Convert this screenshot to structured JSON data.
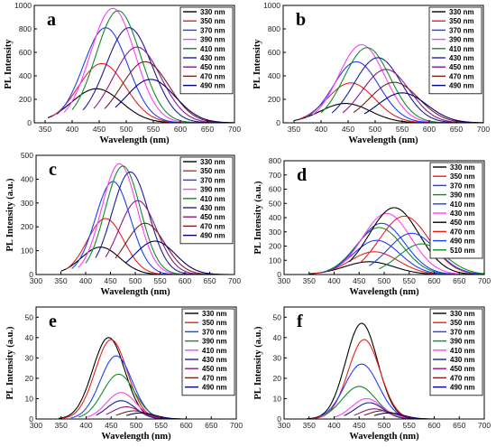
{
  "chart_data": [
    {
      "panel": "a",
      "type": "line",
      "xlabel": "Wavelength (nm)",
      "ylabel": "PL Intensity",
      "xlim": [
        330,
        700
      ],
      "ylim": [
        0,
        1000
      ],
      "xticks": [
        350,
        400,
        450,
        500,
        550,
        600,
        650,
        700
      ],
      "yticks": [
        0,
        200,
        400,
        600,
        800,
        1000
      ],
      "grid": false,
      "legend": "top-right",
      "series": [
        {
          "name": "330 nm",
          "color": "#000000",
          "peak_x": 445,
          "peak_y": 290,
          "width": 65,
          "start": 355
        },
        {
          "name": "350 nm",
          "color": "#e8211d",
          "peak_x": 455,
          "peak_y": 505,
          "width": 62,
          "start": 360
        },
        {
          "name": "370 nm",
          "color": "#1f3ff2",
          "peak_x": 462,
          "peak_y": 810,
          "width": 58,
          "start": 372
        },
        {
          "name": "390 nm",
          "color": "#ff3ff7",
          "peak_x": 475,
          "peak_y": 975,
          "width": 58,
          "start": 385
        },
        {
          "name": "410 nm",
          "color": "#148a2a",
          "peak_x": 485,
          "peak_y": 955,
          "width": 58,
          "start": 400
        },
        {
          "name": "430 nm",
          "color": "#1e1e96",
          "peak_x": 505,
          "peak_y": 810,
          "width": 60,
          "start": 420
        },
        {
          "name": "450 nm",
          "color": "#8a1a8a",
          "peak_x": 520,
          "peak_y": 645,
          "width": 62,
          "start": 440
        },
        {
          "name": "470 nm",
          "color": "#7a2020",
          "peak_x": 535,
          "peak_y": 520,
          "width": 62,
          "start": 460
        },
        {
          "name": "490 nm",
          "color": "#000080",
          "peak_x": 545,
          "peak_y": 370,
          "width": 64,
          "start": 480
        }
      ]
    },
    {
      "panel": "b",
      "type": "line",
      "xlabel": "Wavelength (nm)",
      "ylabel": "PL Intensity",
      "xlim": [
        330,
        700
      ],
      "ylim": [
        0,
        1000
      ],
      "xticks": [
        350,
        400,
        450,
        500,
        550,
        600,
        650,
        700
      ],
      "yticks": [
        0,
        200,
        400,
        600,
        800,
        1000
      ],
      "grid": false,
      "legend": "top-right",
      "series": [
        {
          "name": "330 nm",
          "color": "#000000",
          "peak_x": 445,
          "peak_y": 165,
          "width": 65,
          "start": 350
        },
        {
          "name": "350 nm",
          "color": "#e8211d",
          "peak_x": 455,
          "peak_y": 340,
          "width": 62,
          "start": 360
        },
        {
          "name": "370 nm",
          "color": "#1f3ff2",
          "peak_x": 465,
          "peak_y": 520,
          "width": 60,
          "start": 372
        },
        {
          "name": "390 nm",
          "color": "#ff3ff7",
          "peak_x": 475,
          "peak_y": 665,
          "width": 60,
          "start": 385
        },
        {
          "name": "410 nm",
          "color": "#148a2a",
          "peak_x": 485,
          "peak_y": 640,
          "width": 60,
          "start": 400
        },
        {
          "name": "430 nm",
          "color": "#1e1e96",
          "peak_x": 505,
          "peak_y": 555,
          "width": 62,
          "start": 420
        },
        {
          "name": "450 nm",
          "color": "#8a1a8a",
          "peak_x": 520,
          "peak_y": 455,
          "width": 62,
          "start": 440
        },
        {
          "name": "470 nm",
          "color": "#7a2020",
          "peak_x": 535,
          "peak_y": 345,
          "width": 64,
          "start": 460
        },
        {
          "name": "490 nm",
          "color": "#000080",
          "peak_x": 550,
          "peak_y": 255,
          "width": 64,
          "start": 480
        }
      ]
    },
    {
      "panel": "c",
      "type": "line",
      "xlabel": "Wavelength (nm)",
      "ylabel": "PL Intensity (a.u.)",
      "xlim": [
        300,
        700
      ],
      "ylim": [
        0,
        500
      ],
      "xticks": [
        300,
        350,
        400,
        450,
        500,
        550,
        600,
        650,
        700
      ],
      "yticks": [
        0,
        100,
        200,
        300,
        400,
        500
      ],
      "grid": false,
      "legend": "top-right",
      "series": [
        {
          "name": "330 nm",
          "color": "#000000",
          "peak_x": 430,
          "peak_y": 115,
          "width": 55,
          "start": 350
        },
        {
          "name": "350 nm",
          "color": "#e8211d",
          "peak_x": 440,
          "peak_y": 235,
          "width": 52,
          "start": 360
        },
        {
          "name": "370 nm",
          "color": "#1f3ff2",
          "peak_x": 455,
          "peak_y": 390,
          "width": 50,
          "start": 372
        },
        {
          "name": "390 nm",
          "color": "#ff3ff7",
          "peak_x": 468,
          "peak_y": 465,
          "width": 50,
          "start": 385
        },
        {
          "name": "410 nm",
          "color": "#148a2a",
          "peak_x": 475,
          "peak_y": 455,
          "width": 50,
          "start": 400
        },
        {
          "name": "430 nm",
          "color": "#1e1e96",
          "peak_x": 490,
          "peak_y": 430,
          "width": 52,
          "start": 420
        },
        {
          "name": "450 nm",
          "color": "#8a1a8a",
          "peak_x": 505,
          "peak_y": 310,
          "width": 54,
          "start": 440
        },
        {
          "name": "470 nm",
          "color": "#7a2020",
          "peak_x": 520,
          "peak_y": 215,
          "width": 56,
          "start": 460
        },
        {
          "name": "490 nm",
          "color": "#000080",
          "peak_x": 540,
          "peak_y": 140,
          "width": 58,
          "start": 480
        }
      ]
    },
    {
      "panel": "d",
      "type": "line",
      "xlabel": "Wavelength (nm)",
      "ylabel": "PL Intensity (a.u.)",
      "xlim": [
        300,
        700
      ],
      "ylim": [
        0,
        800
      ],
      "xticks": [
        300,
        350,
        400,
        450,
        500,
        550,
        600,
        650,
        700
      ],
      "yticks": [
        0,
        100,
        200,
        300,
        400,
        500,
        600,
        700,
        800
      ],
      "grid": false,
      "legend": "top-right",
      "series": [
        {
          "name": "330 nm",
          "color": "#000000",
          "peak_x": 470,
          "peak_y": 90,
          "width": 70,
          "start": 350
        },
        {
          "name": "350 nm",
          "color": "#e8211d",
          "peak_x": 480,
          "peak_y": 160,
          "width": 68,
          "start": 360
        },
        {
          "name": "370 nm",
          "color": "#1f3ff2",
          "peak_x": 485,
          "peak_y": 240,
          "width": 66,
          "start": 372
        },
        {
          "name": "390 nm",
          "color": "#148a2a",
          "peak_x": 490,
          "peak_y": 330,
          "width": 66,
          "start": 385
        },
        {
          "name": "410 nm",
          "color": "#1f3ff2",
          "peak_x": 495,
          "peak_y": 360,
          "width": 66,
          "start": 400
        },
        {
          "name": "430 nm",
          "color": "#ff3ff7",
          "peak_x": 505,
          "peak_y": 430,
          "width": 68,
          "start": 415
        },
        {
          "name": "450 nm",
          "color": "#000000",
          "peak_x": 520,
          "peak_y": 470,
          "width": 70,
          "start": 430
        },
        {
          "name": "470 nm",
          "color": "#e8211d",
          "peak_x": 540,
          "peak_y": 410,
          "width": 70,
          "start": 450
        },
        {
          "name": "490 nm",
          "color": "#1f3ff2",
          "peak_x": 555,
          "peak_y": 290,
          "width": 68,
          "start": 470
        },
        {
          "name": "510 nm",
          "color": "#148a2a",
          "peak_x": 575,
          "peak_y": 215,
          "width": 66,
          "start": 490
        }
      ]
    },
    {
      "panel": "e",
      "type": "line",
      "xlabel": "Wavelength (nm)",
      "ylabel": "PL Intensity (a.u.)",
      "xlim": [
        300,
        700
      ],
      "ylim": [
        0,
        55
      ],
      "xticks": [
        300,
        350,
        400,
        450,
        500,
        550,
        600,
        650,
        700
      ],
      "yticks": [
        0,
        10,
        20,
        30,
        40,
        50
      ],
      "grid": false,
      "legend": "top-right",
      "series": [
        {
          "name": "330 nm",
          "color": "#000000",
          "peak_x": 445,
          "peak_y": 40,
          "width": 45,
          "start": 345
        },
        {
          "name": "350 nm",
          "color": "#e8211d",
          "peak_x": 450,
          "peak_y": 39,
          "width": 45,
          "start": 355
        },
        {
          "name": "370 nm",
          "color": "#1f3ff2",
          "peak_x": 460,
          "peak_y": 31,
          "width": 45,
          "start": 370
        },
        {
          "name": "390 nm",
          "color": "#148a2a",
          "peak_x": 465,
          "peak_y": 22,
          "width": 45,
          "start": 385
        },
        {
          "name": "410 nm",
          "color": "#ff3ff7",
          "peak_x": 470,
          "peak_y": 13,
          "width": 42,
          "start": 400
        },
        {
          "name": "430 nm",
          "color": "#1e1e96",
          "peak_x": 470,
          "peak_y": 9,
          "width": 40,
          "start": 420
        },
        {
          "name": "450 nm",
          "color": "#8a1a8a",
          "peak_x": 480,
          "peak_y": 6,
          "width": 40,
          "start": 440
        },
        {
          "name": "470 nm",
          "color": "#7a2020",
          "peak_x": 495,
          "peak_y": 4,
          "width": 40,
          "start": 460
        },
        {
          "name": "490 nm",
          "color": "#000080",
          "peak_x": 510,
          "peak_y": 3,
          "width": 40,
          "start": 480
        }
      ]
    },
    {
      "panel": "f",
      "type": "line",
      "xlabel": "Wavelength (nm)",
      "ylabel": "PL Intensity (a.u.)",
      "xlim": [
        300,
        700
      ],
      "ylim": [
        0,
        55
      ],
      "xticks": [
        300,
        350,
        400,
        450,
        500,
        550,
        600,
        650,
        700
      ],
      "yticks": [
        0,
        10,
        20,
        30,
        40,
        50
      ],
      "grid": false,
      "legend": "top-right",
      "series": [
        {
          "name": "330 nm",
          "color": "#000000",
          "peak_x": 455,
          "peak_y": 47,
          "width": 45,
          "start": 345
        },
        {
          "name": "350 nm",
          "color": "#e8211d",
          "peak_x": 460,
          "peak_y": 39,
          "width": 45,
          "start": 355
        },
        {
          "name": "370 nm",
          "color": "#1f3ff2",
          "peak_x": 455,
          "peak_y": 27,
          "width": 48,
          "start": 370
        },
        {
          "name": "390 nm",
          "color": "#148a2a",
          "peak_x": 450,
          "peak_y": 16,
          "width": 48,
          "start": 385
        },
        {
          "name": "410 nm",
          "color": "#ff3ff7",
          "peak_x": 465,
          "peak_y": 10,
          "width": 42,
          "start": 400
        },
        {
          "name": "430 nm",
          "color": "#1e1e96",
          "peak_x": 470,
          "peak_y": 8,
          "width": 40,
          "start": 420
        },
        {
          "name": "450 nm",
          "color": "#8a1a8a",
          "peak_x": 480,
          "peak_y": 5,
          "width": 40,
          "start": 440
        },
        {
          "name": "470 nm",
          "color": "#7a2020",
          "peak_x": 495,
          "peak_y": 4,
          "width": 40,
          "start": 460
        },
        {
          "name": "490 nm",
          "color": "#000080",
          "peak_x": 510,
          "peak_y": 3,
          "width": 40,
          "start": 480
        }
      ]
    }
  ]
}
